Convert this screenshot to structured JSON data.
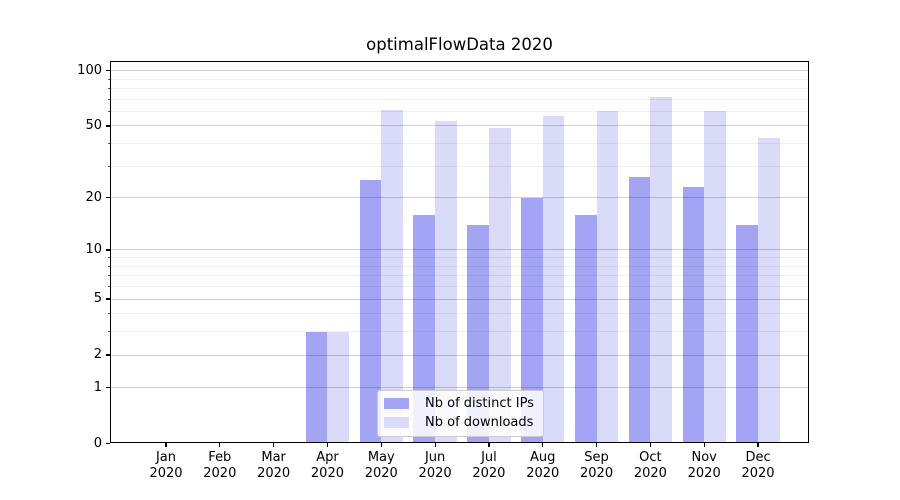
{
  "chart_data": {
    "type": "bar",
    "title": "optimalFlowData 2020",
    "categories": [
      "Jan 2020",
      "Feb 2020",
      "Mar 2020",
      "Apr 2020",
      "May 2020",
      "Jun 2020",
      "Jul 2020",
      "Aug 2020",
      "Sep 2020",
      "Oct 2020",
      "Nov 2020",
      "Dec 2020"
    ],
    "series": [
      {
        "name": "Nb of distinct IPs",
        "color": "#a4a4f4",
        "values": [
          0,
          0,
          0,
          3,
          25,
          16,
          14,
          20,
          16,
          26,
          23,
          14
        ]
      },
      {
        "name": "Nb of downloads",
        "color": "#dadaf9",
        "values": [
          0,
          0,
          0,
          3,
          61,
          53,
          49,
          57,
          60,
          72,
          60,
          43
        ]
      }
    ],
    "xlabel": "",
    "ylabel": "",
    "y_axis": {
      "scale": "symlog",
      "major_ticks": [
        0,
        1,
        2,
        5,
        10,
        20,
        50,
        100
      ],
      "minor_ticks": [
        3,
        4,
        6,
        7,
        8,
        9,
        30,
        40,
        60,
        70,
        80,
        90
      ],
      "range": [
        0,
        113
      ]
    },
    "grid": "on",
    "legend_position": "lower center",
    "colors": {
      "major_grid": "#cccccc",
      "minor_grid": "#efefef",
      "axis": "#000000",
      "background": "#ffffff"
    }
  }
}
